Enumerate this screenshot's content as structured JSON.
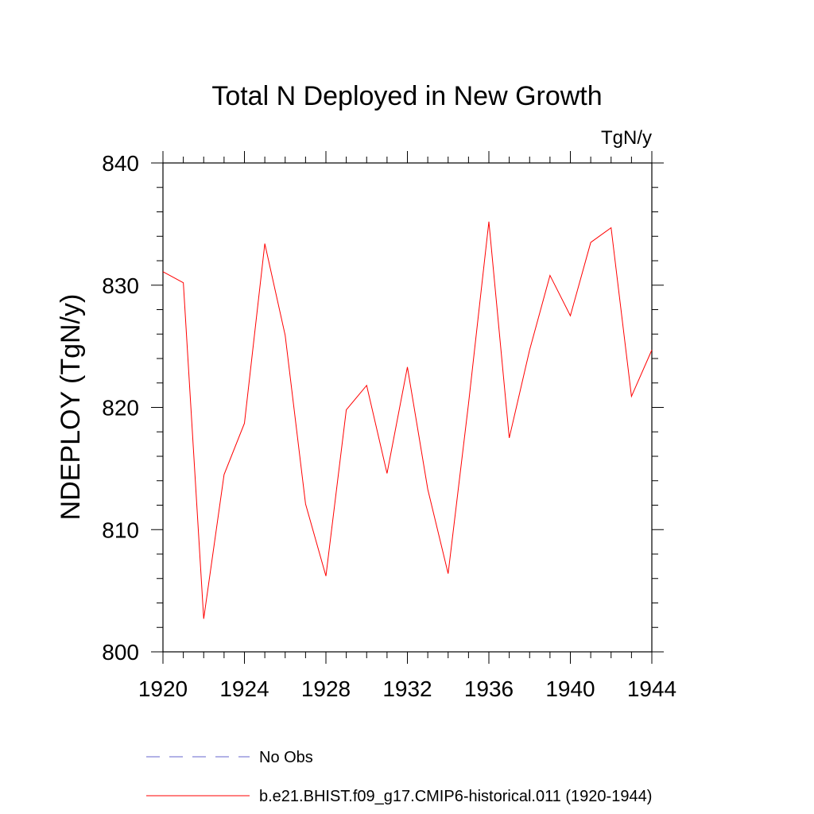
{
  "chart_data": {
    "type": "line",
    "title": "Total N Deployed in New Growth",
    "units": "TgN/y",
    "ylabel": "NDEPLOY  (TgN/y)",
    "xlabel": "",
    "xlim": [
      1920,
      1944
    ],
    "ylim": [
      800,
      840
    ],
    "x_ticks": [
      "1920",
      "1924",
      "1928",
      "1932",
      "1936",
      "1940",
      "1944"
    ],
    "y_ticks": [
      "800",
      "810",
      "820",
      "830",
      "840"
    ],
    "grid": false,
    "legend_position": "bottom",
    "series": [
      {
        "name": "b.e21.BHIST.f09_g17.CMIP6-historical.011 (1920-1944)",
        "color": "#ff0000",
        "style": "solid",
        "x": [
          1920,
          1921,
          1922,
          1923,
          1924,
          1925,
          1926,
          1927,
          1928,
          1929,
          1930,
          1931,
          1932,
          1933,
          1934,
          1935,
          1936,
          1937,
          1938,
          1939,
          1940,
          1941,
          1942,
          1943,
          1944
        ],
        "y": [
          831.1,
          830.2,
          802.7,
          814.5,
          818.7,
          833.4,
          825.9,
          812.1,
          806.2,
          819.8,
          821.8,
          814.6,
          823.3,
          813.3,
          806.4,
          820.3,
          835.2,
          817.5,
          824.7,
          830.8,
          827.5,
          833.5,
          834.7,
          820.9,
          824.7
        ]
      }
    ],
    "legend": [
      {
        "label": "No Obs",
        "color": "#6666cc",
        "style": "dashed"
      },
      {
        "label": "b.e21.BHIST.f09_g17.CMIP6-historical.011 (1920-1944)",
        "color": "#ff0000",
        "style": "solid"
      }
    ]
  }
}
